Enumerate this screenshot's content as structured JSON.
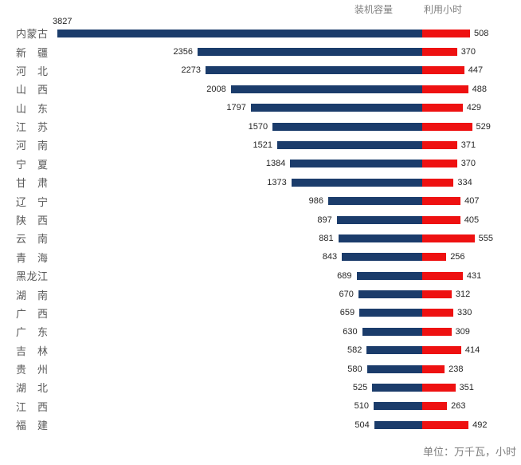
{
  "legend": {
    "capacity": "装机容量",
    "hours": "利用小时"
  },
  "footnote": "单位：万千瓦，小时",
  "colors": {
    "capacity_bar": "#1B3C6B",
    "hours_bar": "#EE1111",
    "value_text": "#262626",
    "category_text": "#595959",
    "muted_text": "#7F7F7F"
  },
  "chart_data": {
    "type": "bar",
    "variant": "diverging-horizontal",
    "title": "",
    "unit_note": "单位：万千瓦，小时",
    "legend_position": "top-right",
    "grid": false,
    "categories": [
      "内蒙古",
      "新疆",
      "河北",
      "山西",
      "山东",
      "江苏",
      "河南",
      "宁夏",
      "甘肃",
      "辽宁",
      "陕西",
      "云南",
      "青海",
      "黑龙江",
      "湖南",
      "广西",
      "广东",
      "吉林",
      "贵州",
      "湖北",
      "江西",
      "福建"
    ],
    "series": [
      {
        "name": "装机容量",
        "direction": "left",
        "color": "#1B3C6B",
        "values": [
          3827,
          2356,
          2273,
          2008,
          1797,
          1570,
          1521,
          1384,
          1373,
          986,
          897,
          881,
          843,
          689,
          670,
          659,
          630,
          582,
          580,
          525,
          510,
          504
        ]
      },
      {
        "name": "利用小时",
        "direction": "right",
        "color": "#EE1111",
        "values": [
          508,
          370,
          447,
          488,
          429,
          529,
          371,
          370,
          334,
          407,
          405,
          555,
          256,
          431,
          312,
          330,
          309,
          414,
          238,
          351,
          263,
          492
        ]
      }
    ],
    "axis": {
      "capacity_range": [
        0,
        3827
      ],
      "hours_range": [
        0,
        555
      ]
    }
  }
}
